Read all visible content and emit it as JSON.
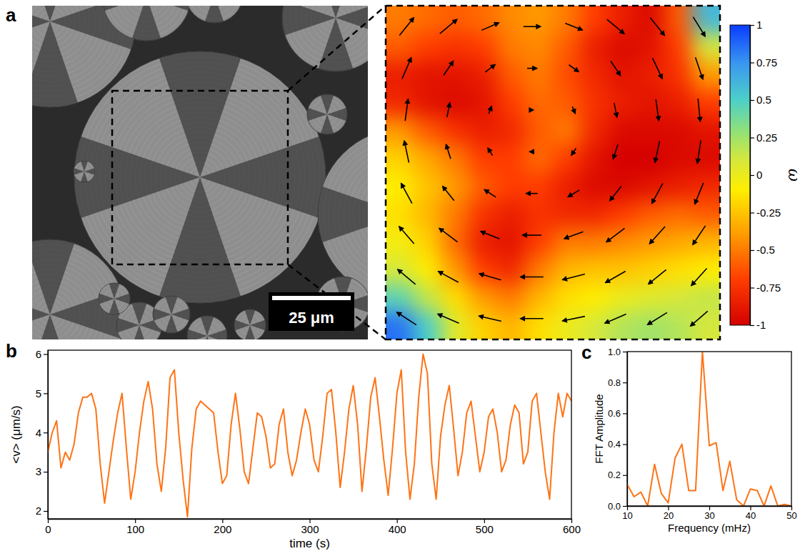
{
  "chart_data": [
    {
      "type": "heatmap",
      "panel": "a",
      "scale_bar": "25 μm",
      "cells": [
        [
          -0.5,
          -0.55,
          -0.6,
          -0.55,
          -0.45,
          -0.4,
          -0.5,
          -0.7,
          -0.85,
          -0.95,
          -0.6,
          0.6
        ],
        [
          -0.6,
          -0.7,
          -0.75,
          -0.7,
          -0.5,
          -0.45,
          -0.6,
          -0.85,
          -0.95,
          -0.9,
          -0.7,
          0.1
        ],
        [
          -0.85,
          -0.9,
          -0.9,
          -0.85,
          -0.6,
          -0.5,
          -0.65,
          -0.8,
          -0.9,
          -0.85,
          -0.75,
          -0.4
        ],
        [
          -0.8,
          -0.9,
          -0.95,
          -0.9,
          -0.7,
          -0.55,
          -0.6,
          -0.75,
          -0.85,
          -0.9,
          -0.85,
          -0.7
        ],
        [
          -0.4,
          -0.6,
          -0.75,
          -0.85,
          -0.8,
          -0.6,
          -0.5,
          -0.8,
          -0.95,
          -0.95,
          -0.95,
          -0.9
        ],
        [
          -0.2,
          -0.35,
          -0.5,
          -0.7,
          -0.7,
          -0.55,
          -0.7,
          -0.9,
          -1.0,
          -1.0,
          -0.95,
          -0.95
        ],
        [
          -0.1,
          -0.25,
          -0.4,
          -0.6,
          -0.7,
          -0.7,
          -0.85,
          -0.95,
          -0.95,
          -0.9,
          -0.85,
          -0.8
        ],
        [
          -0.15,
          -0.3,
          -0.5,
          -0.75,
          -0.85,
          -0.75,
          -0.8,
          -0.8,
          -0.7,
          -0.6,
          -0.55,
          -0.6
        ],
        [
          -0.05,
          -0.2,
          -0.55,
          -0.85,
          -0.9,
          -0.7,
          -0.5,
          -0.5,
          -0.45,
          -0.4,
          -0.35,
          -0.3
        ],
        [
          0.1,
          -0.1,
          -0.4,
          -0.7,
          -0.8,
          -0.5,
          -0.3,
          -0.25,
          -0.25,
          -0.2,
          -0.15,
          -0.1
        ],
        [
          0.45,
          0.15,
          -0.15,
          -0.4,
          -0.5,
          -0.3,
          -0.15,
          -0.1,
          0.0,
          0.05,
          0.1,
          0.15
        ],
        [
          0.85,
          0.5,
          0.05,
          -0.2,
          -0.3,
          -0.15,
          0.0,
          0.1,
          0.2,
          0.25,
          0.2,
          0.1
        ]
      ],
      "vectors": {
        "u": [
          [
            2.5,
            3.0,
            3.0,
            3.0,
            3.0,
            3.0,
            2.5,
            2.1
          ],
          [
            1.6,
            1.7,
            1.7,
            1.7,
            1.7,
            1.7,
            1.7,
            1.3
          ],
          [
            0.5,
            0.5,
            0.5,
            0.5,
            0.5,
            0.5,
            0.5,
            0.4
          ],
          [
            -0.8,
            -0.8,
            -0.8,
            -0.8,
            -0.8,
            -0.8,
            -0.8,
            -0.6
          ],
          [
            -1.9,
            -2.0,
            -2.0,
            -2.0,
            -2.0,
            -2.0,
            -1.9,
            -1.5
          ],
          [
            -2.6,
            -3.2,
            -3.3,
            -3.3,
            -3.3,
            -3.2,
            -2.7,
            -2.2
          ],
          [
            -3.1,
            -3.5,
            -3.8,
            -4.0,
            -3.9,
            -3.5,
            -3.1,
            -2.7
          ],
          [
            -3.4,
            -3.7,
            -3.9,
            -4.0,
            -3.9,
            -3.7,
            -3.4,
            -3.0
          ]
        ],
        "v": [
          [
            -3.1,
            -2.5,
            -1.3,
            0.0,
            1.2,
            2.5,
            3.1,
            3.4
          ],
          [
            -3.7,
            -2.5,
            -1.3,
            0.0,
            1.2,
            2.5,
            3.6,
            3.8
          ],
          [
            -3.8,
            -2.5,
            -1.3,
            0.0,
            1.2,
            2.5,
            3.7,
            4.0
          ],
          [
            -3.8,
            -2.5,
            -1.3,
            0.0,
            1.2,
            2.5,
            3.7,
            4.0
          ],
          [
            -3.5,
            -2.5,
            -1.3,
            0.0,
            1.2,
            2.5,
            3.5,
            3.7
          ],
          [
            -3.0,
            -2.4,
            -1.3,
            0.0,
            1.2,
            2.4,
            3.0,
            3.3
          ],
          [
            -2.6,
            -1.9,
            -1.1,
            0.0,
            1.0,
            2.0,
            2.5,
            3.0
          ],
          [
            -2.2,
            -1.6,
            -0.9,
            0.0,
            0.8,
            1.6,
            2.1,
            2.6
          ]
        ]
      },
      "colorbar": {
        "range": [
          -1,
          1
        ],
        "ticks": [
          1,
          0.75,
          0.5,
          0.25,
          0,
          -0.25,
          -0.5,
          -0.75,
          -1
        ],
        "label": "ω"
      }
    },
    {
      "type": "line",
      "panel": "b",
      "color": "#ff7315",
      "x_label": "time (s)",
      "y_label": "<v> (μm/s)",
      "x": [
        0,
        5,
        10,
        15,
        20,
        25,
        30,
        35,
        40,
        45,
        50,
        55,
        60,
        65,
        70,
        75,
        80,
        85,
        90,
        95,
        100,
        105,
        110,
        115,
        120,
        125,
        130,
        135,
        140,
        145,
        150,
        155,
        160,
        165,
        170,
        175,
        180,
        185,
        190,
        195,
        200,
        205,
        210,
        215,
        220,
        225,
        230,
        235,
        240,
        245,
        250,
        255,
        260,
        265,
        270,
        275,
        280,
        285,
        290,
        295,
        300,
        305,
        310,
        315,
        320,
        325,
        330,
        335,
        340,
        345,
        350,
        355,
        360,
        365,
        370,
        375,
        380,
        385,
        390,
        395,
        400,
        405,
        410,
        415,
        420,
        425,
        430,
        435,
        440,
        445,
        450,
        455,
        460,
        465,
        470,
        475,
        480,
        485,
        490,
        495,
        500,
        505,
        510,
        515,
        520,
        525,
        530,
        535,
        540,
        545,
        550,
        555,
        560,
        565,
        570,
        575,
        580,
        585,
        590,
        595,
        600
      ],
      "values": [
        3.5,
        4.0,
        4.3,
        3.1,
        3.5,
        3.3,
        3.7,
        4.5,
        4.9,
        4.9,
        5.0,
        4.6,
        3.2,
        2.2,
        3.0,
        3.8,
        4.5,
        5.0,
        3.6,
        2.3,
        3.0,
        4.0,
        4.8,
        5.3,
        4.6,
        3.2,
        2.5,
        3.6,
        5.4,
        5.6,
        4.0,
        2.8,
        1.85,
        3.6,
        4.6,
        4.8,
        4.7,
        4.6,
        4.5,
        3.5,
        2.7,
        2.9,
        4.2,
        5.0,
        4.1,
        3.0,
        2.7,
        3.6,
        4.5,
        4.4,
        3.9,
        3.1,
        3.2,
        4.2,
        4.6,
        3.5,
        2.9,
        3.3,
        4.0,
        4.6,
        4.2,
        3.3,
        3.0,
        3.9,
        5.0,
        5.1,
        4.0,
        2.6,
        3.5,
        4.6,
        5.2,
        4.2,
        2.5,
        3.6,
        4.9,
        5.4,
        4.4,
        3.3,
        2.4,
        3.6,
        5.0,
        5.6,
        3.5,
        2.3,
        3.2,
        4.9,
        6.0,
        5.5,
        3.2,
        2.3,
        3.9,
        4.7,
        5.2,
        4.1,
        2.9,
        3.5,
        4.5,
        4.8,
        3.9,
        3.0,
        3.5,
        4.4,
        4.6,
        4.0,
        3.0,
        3.3,
        4.2,
        4.7,
        4.5,
        3.2,
        3.5,
        4.8,
        5.0,
        4.0,
        3.0,
        2.3,
        4.0,
        5.0,
        4.4,
        5.0,
        4.8
      ],
      "xlim": [
        0,
        600
      ],
      "xticks": [
        0,
        100,
        200,
        300,
        400,
        500,
        600
      ],
      "ylim": [
        1.8,
        6.1
      ],
      "yticks": [
        2,
        3,
        4,
        5,
        6
      ]
    },
    {
      "type": "line",
      "panel": "c",
      "color": "#ff7315",
      "x_label": "Frequency (mHz)",
      "y_label": "FFT Amplitude",
      "x": [
        10,
        11.67,
        13.33,
        15,
        16.67,
        18.33,
        20,
        21.67,
        23.33,
        25,
        26.67,
        28.33,
        30,
        31.67,
        33.33,
        35,
        36.67,
        38.33,
        40,
        41.67,
        43.33,
        45,
        46.67,
        48.33,
        50
      ],
      "values": [
        0.14,
        0.06,
        0.09,
        0.0,
        0.27,
        0.08,
        0.02,
        0.31,
        0.4,
        0.1,
        0.1,
        1.0,
        0.39,
        0.41,
        0.1,
        0.29,
        0.04,
        0.0,
        0.11,
        0.1,
        0.0,
        0.13,
        0.0,
        0.01,
        0.0
      ],
      "xlim": [
        10,
        50
      ],
      "xticks": [
        10,
        20,
        30,
        40,
        50
      ],
      "ylim": [
        0,
        1
      ],
      "yticks": [
        {
          "value": 0,
          "label": "0.0"
        },
        0.2,
        0.4,
        0.6,
        0.8,
        {
          "value": 1,
          "label": "1.0"
        }
      ]
    }
  ]
}
